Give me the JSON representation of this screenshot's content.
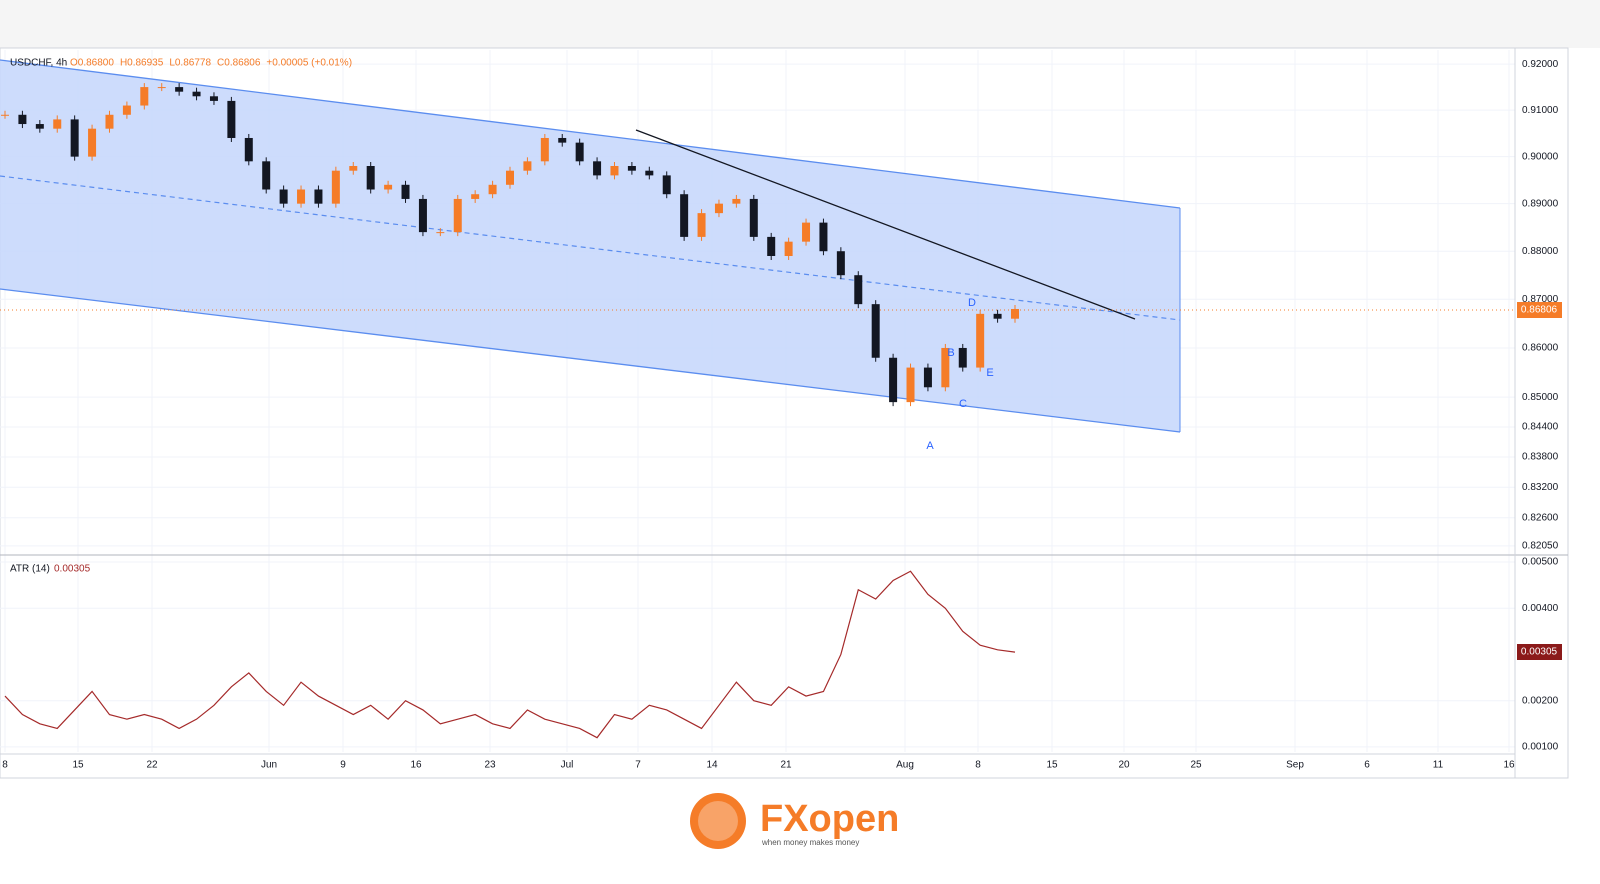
{
  "chart_data": {
    "type": "candlestick",
    "symbol": "USDCHF, 4h",
    "ohlc": [
      "O0.86800",
      "H0.86935",
      "L0.86778",
      "C0.86806",
      "+0.00005 (+0.01%)"
    ],
    "last_price_label": "0.86806",
    "ylog": true,
    "ylim": [
      0.8191,
      0.9231
    ],
    "yticks": [
      {
        "value": 0.92,
        "label": "0.92000"
      },
      {
        "value": 0.91,
        "label": "0.91000"
      },
      {
        "value": 0.9,
        "label": "0.90000"
      },
      {
        "value": 0.89,
        "label": "0.89000"
      },
      {
        "value": 0.88,
        "label": "0.88000"
      },
      {
        "value": 0.87,
        "label": "0.87000"
      },
      {
        "value": 0.86,
        "label": "0.86000"
      },
      {
        "value": 0.85,
        "label": "0.85000"
      },
      {
        "value": 0.844,
        "label": "0.84400"
      },
      {
        "value": 0.838,
        "label": "0.83800"
      },
      {
        "value": 0.832,
        "label": "0.83200"
      },
      {
        "value": 0.826,
        "label": "0.82600"
      },
      {
        "value": 0.8205,
        "label": "0.82050"
      }
    ],
    "closes": [
      0.909,
      0.907,
      0.906,
      0.908,
      0.9,
      0.906,
      0.909,
      0.911,
      0.915,
      0.915,
      0.914,
      0.913,
      0.912,
      0.904,
      0.899,
      0.893,
      0.89,
      0.893,
      0.89,
      0.897,
      0.898,
      0.893,
      0.894,
      0.891,
      0.884,
      0.884,
      0.891,
      0.892,
      0.894,
      0.897,
      0.899,
      0.904,
      0.903,
      0.899,
      0.896,
      0.898,
      0.897,
      0.896,
      0.892,
      0.883,
      0.888,
      0.89,
      0.891,
      0.883,
      0.879,
      0.882,
      0.886,
      0.88,
      0.875,
      0.869,
      0.858,
      0.849,
      0.856,
      0.852,
      0.86,
      0.856,
      0.867,
      0.866,
      0.868
    ],
    "colors": {
      "up": "#f57c28",
      "down": "#131722"
    },
    "wave_labels": [
      "A",
      "B",
      "C",
      "D",
      "E"
    ],
    "atr": {
      "label": "ATR (14)",
      "value_label": "0.00305",
      "color": "#a52a2a",
      "ylim": [
        0.00089,
        0.00513
      ],
      "yticks": [
        {
          "value": 0.005,
          "label": "0.00500"
        },
        {
          "value": 0.004,
          "label": "0.00400"
        },
        {
          "value": 0.002,
          "label": "0.00200"
        },
        {
          "value": 0.001,
          "label": "0.00100"
        }
      ],
      "values": [
        0.0021,
        0.0017,
        0.0015,
        0.0014,
        0.0018,
        0.0022,
        0.0017,
        0.0016,
        0.0017,
        0.0016,
        0.0014,
        0.0016,
        0.0019,
        0.0023,
        0.0026,
        0.0022,
        0.0019,
        0.0024,
        0.0021,
        0.0019,
        0.0017,
        0.0019,
        0.0016,
        0.002,
        0.0018,
        0.0015,
        0.0016,
        0.0017,
        0.0015,
        0.0014,
        0.0018,
        0.0016,
        0.0015,
        0.0014,
        0.0012,
        0.0017,
        0.0016,
        0.0019,
        0.0018,
        0.0016,
        0.0014,
        0.0019,
        0.0024,
        0.002,
        0.0019,
        0.0023,
        0.0021,
        0.0022,
        0.003,
        0.0044,
        0.0042,
        0.0046,
        0.0048,
        0.0043,
        0.004,
        0.0035,
        0.0032,
        0.0031,
        0.00305
      ]
    },
    "x_labels": [
      "8",
      "15",
      "22",
      "Jun",
      "9",
      "16",
      "23",
      "Jul",
      "7",
      "14",
      "21",
      "Aug",
      "8",
      "15",
      "20",
      "25",
      "Sep",
      "6",
      "11",
      "16"
    ],
    "logo": {
      "brand": "FXopen",
      "tagline": "when money makes money"
    }
  }
}
